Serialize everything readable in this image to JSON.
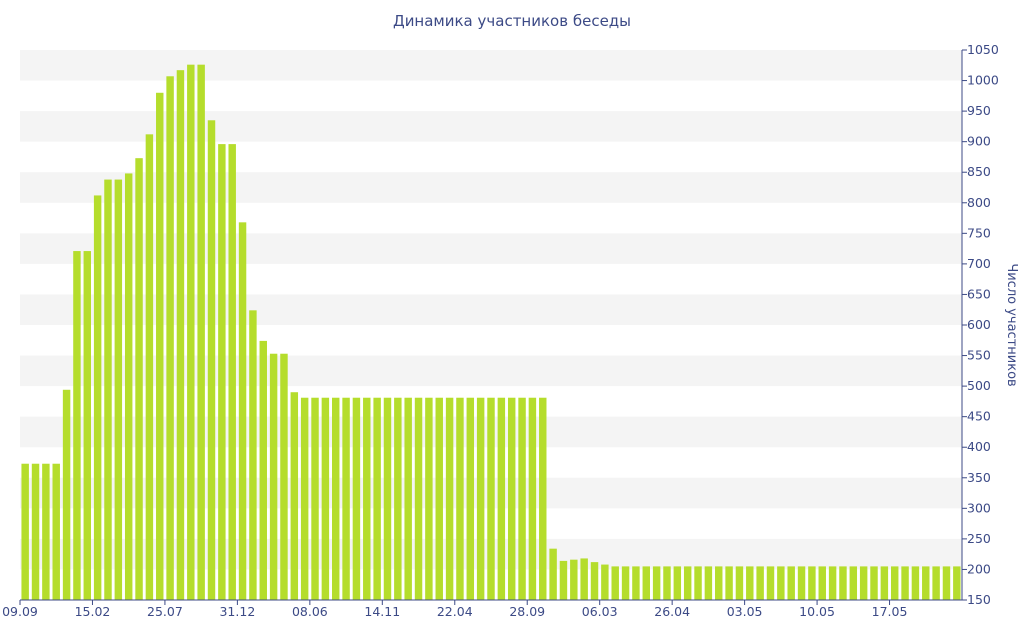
{
  "chart_data": {
    "type": "bar",
    "title": "Динамика участников беседы",
    "xlabel": "",
    "ylabel": "Число участников",
    "ylim": [
      150,
      1050
    ],
    "y_ticks": [
      150,
      200,
      250,
      300,
      350,
      400,
      450,
      500,
      550,
      600,
      650,
      700,
      750,
      800,
      850,
      900,
      950,
      1000,
      1050
    ],
    "y_axis_side": "right",
    "grid": "horizontal alternating bands",
    "colors": {
      "bar": "#b5dd2c",
      "band": "#f4f4f4",
      "text": "#3c4a86",
      "axis": "#3c4a86"
    },
    "x_tick_labels": [
      {
        "index": 0,
        "label": "09.09"
      },
      {
        "index": 7,
        "label": "15.02"
      },
      {
        "index": 14,
        "label": "25.07"
      },
      {
        "index": 21,
        "label": "31.12"
      },
      {
        "index": 28,
        "label": "08.06"
      },
      {
        "index": 35,
        "label": "14.11"
      },
      {
        "index": 42,
        "label": "22.04"
      },
      {
        "index": 49,
        "label": "28.09"
      },
      {
        "index": 56,
        "label": "06.03"
      },
      {
        "index": 63,
        "label": "26.04"
      },
      {
        "index": 70,
        "label": "03.05"
      },
      {
        "index": 77,
        "label": "10.05"
      },
      {
        "index": 84,
        "label": "17.05"
      }
    ],
    "values": [
      373,
      373,
      373,
      373,
      494,
      721,
      721,
      812,
      838,
      838,
      848,
      873,
      912,
      980,
      1007,
      1017,
      1026,
      1026,
      935,
      896,
      896,
      768,
      624,
      574,
      553,
      553,
      490,
      481,
      481,
      481,
      481,
      481,
      481,
      481,
      481,
      481,
      481,
      481,
      481,
      481,
      481,
      481,
      481,
      481,
      481,
      481,
      481,
      481,
      481,
      481,
      481,
      234,
      214,
      216,
      218,
      212,
      208,
      205,
      205,
      205,
      205,
      205,
      205,
      205,
      205,
      205,
      205,
      205,
      205,
      205,
      205,
      205,
      205,
      205,
      205,
      205,
      205,
      205,
      205,
      205,
      205,
      205,
      205,
      205,
      205,
      205,
      205,
      205,
      205,
      205,
      205
    ]
  }
}
